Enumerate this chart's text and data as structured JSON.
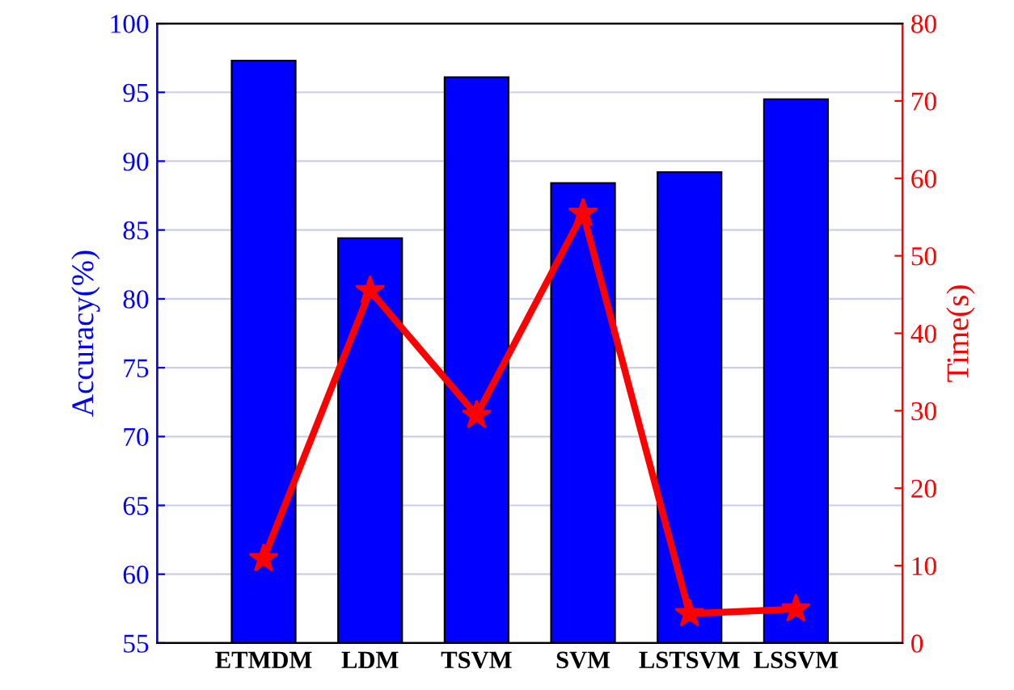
{
  "chart_data": {
    "type": "bar",
    "categories": [
      "ETMDM",
      "LDM",
      "TSVM",
      "SVM",
      "LSTSVM",
      "LSSVM"
    ],
    "ylabel": "Accuracy(%)",
    "y2label": "Time(s)",
    "series": [
      {
        "color": "#0000ff",
        "values": [
          97.3,
          84.4,
          96.1,
          88.4,
          89.2,
          94.5
        ]
      },
      {
        "type": "line",
        "axis": "y2",
        "color": "#ff0000",
        "marker": "star",
        "line_style": "solid",
        "values": [
          10.9,
          45.5,
          29.4,
          55.5,
          3.8,
          4.4
        ]
      }
    ],
    "ylim": [
      55,
      100
    ],
    "yticks": [
      55,
      60,
      65,
      70,
      75,
      80,
      85,
      90,
      95,
      100
    ],
    "y2lim": [
      0,
      80
    ],
    "y2ticks": [
      0,
      10,
      20,
      30,
      40,
      50,
      60,
      70,
      80
    ],
    "grid": "y",
    "legend": false
  }
}
